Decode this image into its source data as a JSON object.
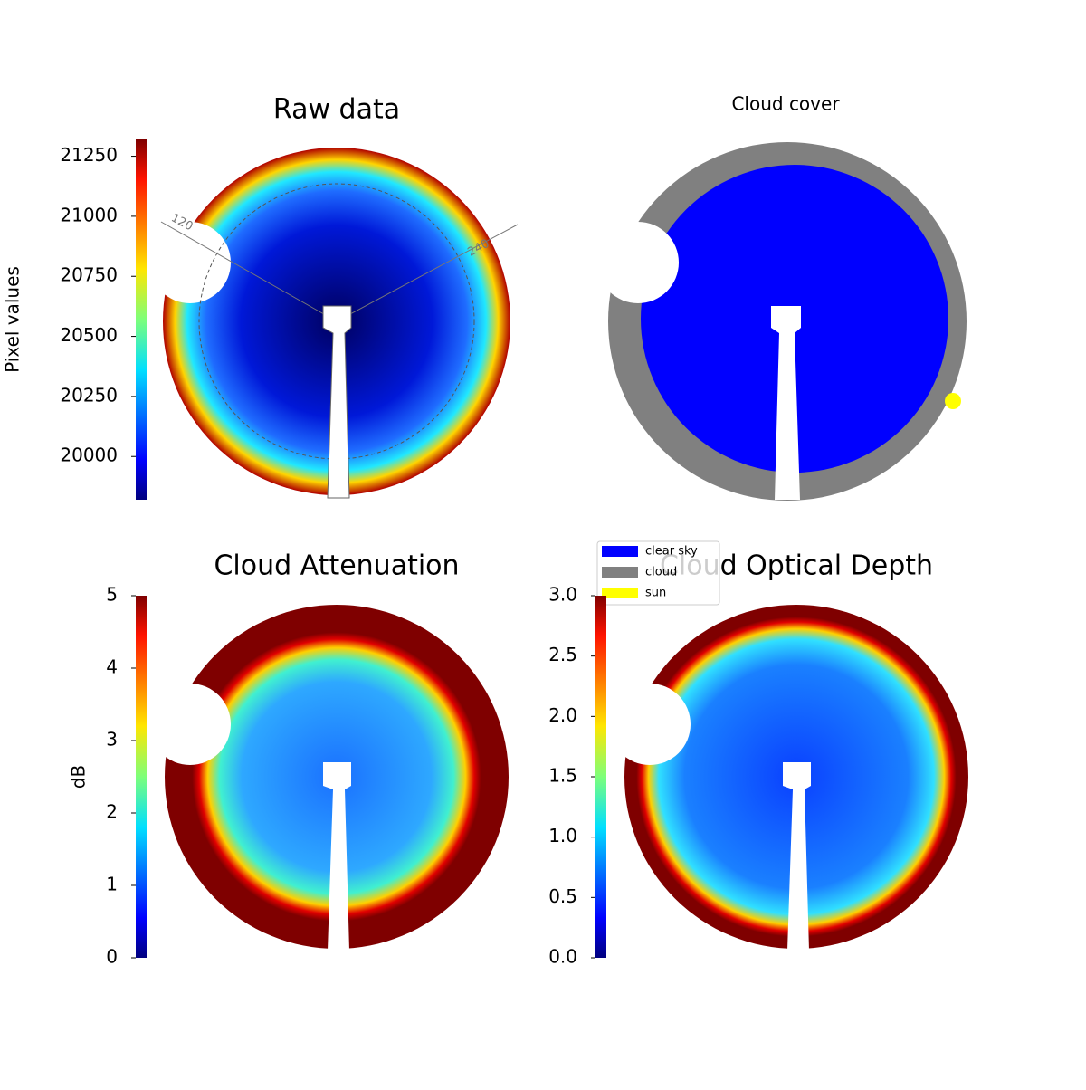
{
  "chart_data": [
    {
      "type": "image",
      "title": "Raw data",
      "colorbar_label": "Pixel values",
      "colormap": "jet",
      "ylim": [
        19820,
        21320
      ],
      "yticks": [
        20000,
        20250,
        20500,
        20750,
        21000,
        21250
      ],
      "annotations": [
        "120",
        "240"
      ]
    },
    {
      "type": "classification",
      "title": "Cloud cover",
      "series": [
        {
          "name": "clear sky",
          "color": "#0000ff"
        },
        {
          "name": "cloud",
          "color": "#808080"
        },
        {
          "name": "sun",
          "color": "#ffff00"
        }
      ],
      "legend": "lower left"
    },
    {
      "type": "image",
      "title": "Cloud Attenuation",
      "colorbar_label": "dB",
      "colormap": "jet",
      "ylim": [
        0,
        5
      ],
      "yticks": [
        0,
        1,
        2,
        3,
        4,
        5
      ]
    },
    {
      "type": "image",
      "title": "Cloud Optical Depth",
      "colormap": "jet",
      "ylim": [
        0,
        3
      ],
      "yticks": [
        {
          "value": 0,
          "label": "0.0"
        },
        {
          "value": 0.5,
          "label": "0.5"
        },
        {
          "value": 1,
          "label": "1.0"
        },
        {
          "value": 1.5,
          "label": "1.5"
        },
        {
          "value": 2,
          "label": "2.0"
        },
        {
          "value": 2.5,
          "label": "2.5"
        },
        {
          "value": 3,
          "label": "3.0"
        }
      ]
    }
  ]
}
